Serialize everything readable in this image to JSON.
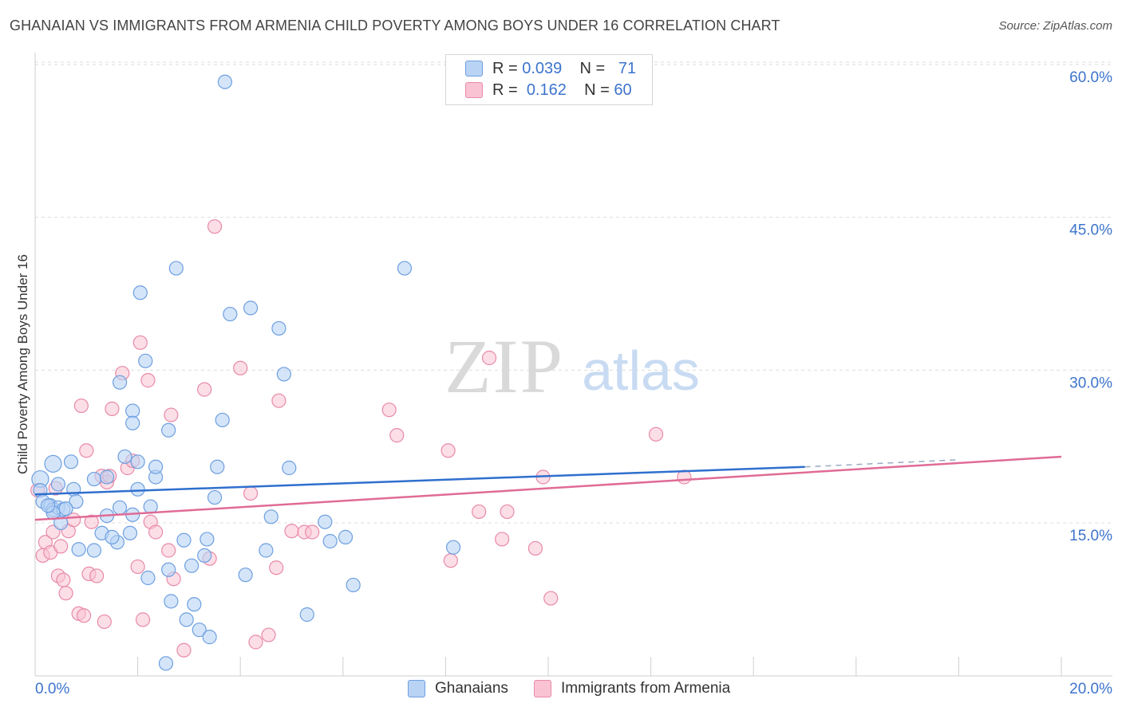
{
  "title": "GHANAIAN VS IMMIGRANTS FROM ARMENIA CHILD POVERTY AMONG BOYS UNDER 16 CORRELATION CHART",
  "source": "Source: ZipAtlas.com",
  "watermark": {
    "zip": "ZIP",
    "atlas": "atlas"
  },
  "legend": {
    "ghanaian": {
      "r_label": "R =",
      "r_value": "0.039",
      "n_label": "N =",
      "n_value": "71"
    },
    "armenia": {
      "r_label": "R =",
      "r_value": "0.162",
      "n_label": "N =",
      "n_value": "60"
    }
  },
  "bottom_legend": {
    "ghanaian": "Ghanaians",
    "armenia": "Immigrants from Armenia"
  },
  "colors": {
    "blue_fill": "#b9d3f5",
    "blue_stroke": "#6d9fe0",
    "blue_line": "#2f6fce",
    "pink_fill": "#f9c3d3",
    "pink_stroke": "#e88aa8",
    "pink_line": "#e06b96",
    "tick_label": "#3d74cc",
    "grid": "#dcdcdc"
  },
  "chart_data": {
    "type": "scatter",
    "xlabel": "",
    "ylabel": "Child Poverty Among Boys Under 16",
    "xlim": [
      0,
      20
    ],
    "ylim": [
      0,
      62.5
    ],
    "x_tick_labels": [
      "0.0%",
      "20.0%"
    ],
    "y_ticks": [
      15,
      30,
      45,
      60
    ],
    "y_tick_labels": [
      "15.0%",
      "30.0%",
      "45.0%",
      "60.0%"
    ],
    "series": [
      {
        "name": "Ghanaians",
        "trend": {
          "x0": 0,
          "y0": 17.8,
          "x1": 15.0,
          "y1": 20.5,
          "dash_to_x": 18.0,
          "dash_to_y": 21.2
        },
        "points": [
          [
            0.1,
            19.3
          ],
          [
            0.1,
            18.2
          ],
          [
            0.15,
            17.1
          ],
          [
            0.3,
            16.7
          ],
          [
            0.35,
            16.3
          ],
          [
            0.35,
            20.8
          ],
          [
            0.45,
            16.5
          ],
          [
            0.55,
            16.3
          ],
          [
            0.35,
            16.0
          ],
          [
            0.5,
            15.0
          ],
          [
            0.45,
            18.8
          ],
          [
            0.75,
            18.3
          ],
          [
            0.8,
            17.1
          ],
          [
            0.7,
            21.0
          ],
          [
            0.85,
            12.4
          ],
          [
            1.15,
            12.3
          ],
          [
            1.15,
            19.3
          ],
          [
            1.4,
            19.5
          ],
          [
            1.3,
            14.0
          ],
          [
            1.4,
            15.7
          ],
          [
            1.6,
            13.1
          ],
          [
            1.65,
            16.5
          ],
          [
            1.75,
            21.5
          ],
          [
            1.85,
            14.0
          ],
          [
            1.9,
            15.8
          ],
          [
            2.0,
            21.0
          ],
          [
            2.0,
            18.3
          ],
          [
            1.9,
            26.0
          ],
          [
            1.9,
            24.8
          ],
          [
            1.65,
            28.8
          ],
          [
            2.05,
            37.6
          ],
          [
            2.15,
            30.9
          ],
          [
            2.2,
            9.6
          ],
          [
            2.25,
            16.6
          ],
          [
            2.35,
            19.5
          ],
          [
            2.6,
            10.4
          ],
          [
            2.6,
            24.1
          ],
          [
            2.65,
            7.3
          ],
          [
            2.75,
            40.0
          ],
          [
            2.9,
            13.3
          ],
          [
            3.05,
            10.8
          ],
          [
            3.1,
            7.0
          ],
          [
            2.95,
            5.5
          ],
          [
            3.2,
            4.5
          ],
          [
            3.3,
            11.8
          ],
          [
            3.4,
            3.8
          ],
          [
            3.55,
            20.5
          ],
          [
            3.5,
            17.5
          ],
          [
            3.7,
            58.3
          ],
          [
            3.8,
            35.5
          ],
          [
            3.65,
            25.1
          ],
          [
            4.2,
            36.1
          ],
          [
            4.1,
            9.9
          ],
          [
            4.5,
            12.3
          ],
          [
            4.6,
            15.6
          ],
          [
            4.75,
            34.1
          ],
          [
            4.85,
            29.6
          ],
          [
            4.95,
            20.4
          ],
          [
            5.3,
            6.0
          ],
          [
            5.65,
            15.1
          ],
          [
            5.75,
            13.2
          ],
          [
            6.05,
            13.6
          ],
          [
            6.2,
            8.9
          ],
          [
            7.2,
            40.0
          ],
          [
            8.15,
            12.6
          ],
          [
            3.35,
            13.4
          ],
          [
            2.55,
            1.2
          ],
          [
            2.35,
            20.5
          ],
          [
            1.5,
            13.6
          ],
          [
            0.25,
            16.7
          ],
          [
            0.6,
            16.4
          ]
        ]
      },
      {
        "name": "Immigrants from Armenia",
        "trend": {
          "x0": 0,
          "y0": 15.3,
          "x1": 20.0,
          "y1": 21.5
        },
        "points": [
          [
            0.05,
            18.2
          ],
          [
            0.15,
            11.8
          ],
          [
            0.2,
            13.1
          ],
          [
            0.3,
            12.1
          ],
          [
            0.35,
            14.1
          ],
          [
            0.4,
            18.4
          ],
          [
            0.45,
            9.8
          ],
          [
            0.5,
            12.7
          ],
          [
            0.55,
            9.4
          ],
          [
            0.6,
            8.1
          ],
          [
            0.65,
            14.2
          ],
          [
            0.75,
            15.3
          ],
          [
            0.85,
            6.1
          ],
          [
            0.9,
            26.5
          ],
          [
            0.95,
            5.9
          ],
          [
            1.0,
            22.1
          ],
          [
            1.05,
            10.0
          ],
          [
            1.1,
            15.1
          ],
          [
            1.2,
            9.8
          ],
          [
            1.3,
            19.6
          ],
          [
            1.35,
            5.3
          ],
          [
            1.4,
            19.0
          ],
          [
            1.45,
            19.6
          ],
          [
            1.5,
            26.2
          ],
          [
            1.7,
            29.7
          ],
          [
            1.8,
            20.4
          ],
          [
            1.9,
            21.1
          ],
          [
            2.0,
            10.7
          ],
          [
            2.05,
            32.7
          ],
          [
            2.1,
            5.5
          ],
          [
            2.2,
            29.0
          ],
          [
            2.25,
            15.1
          ],
          [
            2.35,
            14.1
          ],
          [
            2.6,
            12.3
          ],
          [
            2.65,
            25.6
          ],
          [
            2.7,
            9.5
          ],
          [
            2.9,
            2.5
          ],
          [
            3.3,
            28.1
          ],
          [
            3.4,
            11.5
          ],
          [
            3.5,
            44.1
          ],
          [
            4.0,
            30.2
          ],
          [
            4.2,
            17.9
          ],
          [
            4.3,
            3.3
          ],
          [
            4.55,
            4.0
          ],
          [
            4.7,
            10.6
          ],
          [
            4.75,
            27.0
          ],
          [
            5.0,
            14.2
          ],
          [
            5.25,
            14.1
          ],
          [
            5.4,
            14.1
          ],
          [
            6.9,
            26.1
          ],
          [
            8.05,
            22.1
          ],
          [
            8.1,
            11.3
          ],
          [
            8.65,
            16.1
          ],
          [
            8.85,
            31.2
          ],
          [
            9.2,
            16.1
          ],
          [
            9.75,
            12.5
          ],
          [
            7.05,
            23.6
          ],
          [
            9.9,
            19.5
          ],
          [
            12.1,
            23.7
          ],
          [
            10.05,
            7.6
          ]
        ]
      }
    ],
    "extra_points_pink": [
      [
        9.1,
        13.4
      ],
      [
        12.65,
        19.5
      ]
    ]
  }
}
